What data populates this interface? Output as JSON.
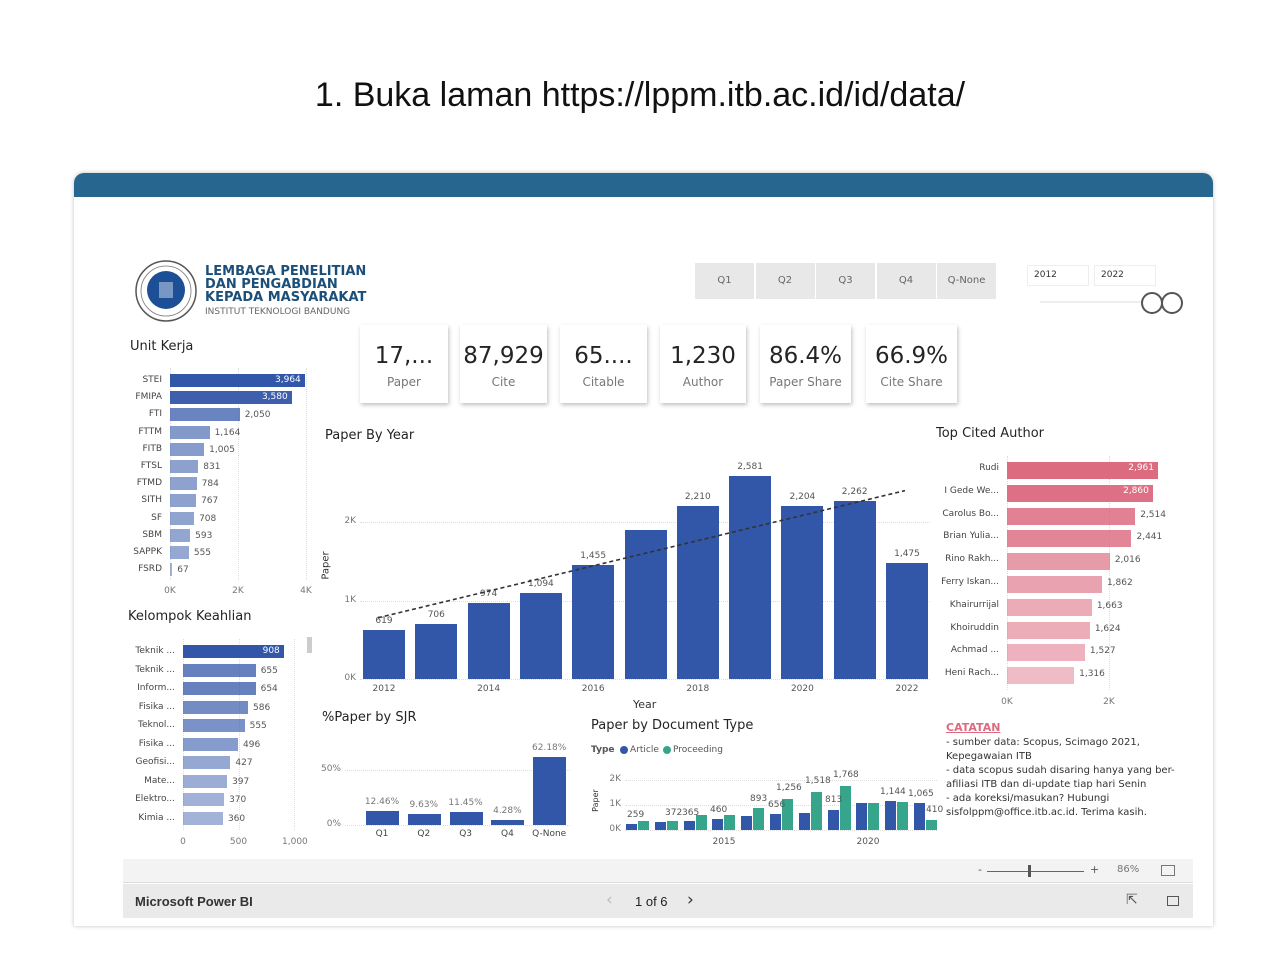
{
  "heading": "1. Buka laman https://lppm.itb.ac.id/id/data/",
  "logo": {
    "line1": "LEMBAGA PENELITIAN",
    "line2": "DAN PENGABDIAN",
    "line3": "KEPADA MASYARAKAT",
    "line4": "INSTITUT TEKNOLOGI BANDUNG",
    "seal_text": "INSTITUT TEKNOLOGI BANDUNG 1920"
  },
  "kpis": [
    {
      "value": "17,...",
      "label": "Paper"
    },
    {
      "value": "87,929",
      "label": "Cite"
    },
    {
      "value": "65....",
      "label": "Citable"
    },
    {
      "value": "1,230",
      "label": "Author"
    },
    {
      "value": "86.4%",
      "label": "Paper Share"
    },
    {
      "value": "66.9%",
      "label": "Cite Share"
    }
  ],
  "quartile_slicer": [
    "Q1",
    "Q2",
    "Q3",
    "Q4",
    "Q-None"
  ],
  "year_slicer": {
    "from": "2012",
    "to": "2022"
  },
  "notes": {
    "title": "CATATAN",
    "lines": [
      "- sumber data: Scopus, Scimago 2021,",
      "Kepegawaian ITB",
      "- data scopus sudah disaring hanya yang ber-",
      "afiliasi ITB dan di-update tiap hari Senin",
      "- ada koreksi/masukan? Hubungi",
      "sisfolppm@office.itb.ac.id. Terima kasih."
    ]
  },
  "zoom": {
    "minus": "-",
    "plus": "+",
    "level": "86%"
  },
  "footer": {
    "brand": "Microsoft Power BI",
    "page": "1 of 6"
  },
  "colors": {
    "header": "#27668e",
    "bar_blue": "#3256a8",
    "pink": "#dc6b80",
    "teal": "#37a58c",
    "notes": "#dc6b80"
  },
  "chart_data": [
    {
      "id": "unit",
      "type": "bar",
      "orientation": "horizontal",
      "title": "Unit Kerja",
      "categories": [
        "STEI",
        "FMIPA",
        "FTI",
        "FTTM",
        "FITB",
        "FTSL",
        "FTMD",
        "SITH",
        "SF",
        "SBM",
        "SAPPK",
        "FSRD"
      ],
      "values": [
        3964,
        3580,
        2050,
        1164,
        1005,
        831,
        784,
        767,
        708,
        593,
        555,
        67
      ],
      "labels": [
        "3,964",
        "3,580",
        "2,050",
        "1,164",
        "1,005",
        "831",
        "784",
        "767",
        "708",
        "593",
        "555",
        "67"
      ],
      "ticks": [
        "0K",
        "2K",
        "4K"
      ],
      "xlim": [
        0,
        4000
      ]
    },
    {
      "id": "kk",
      "type": "bar",
      "orientation": "horizontal",
      "title": "Kelompok Keahlian",
      "categories": [
        "Teknik ...",
        "Teknik ...",
        "Inform...",
        "Fisika ...",
        "Teknol...",
        "Fisika ...",
        "Geofisi...",
        "Mate...",
        "Elektro...",
        "Kimia ..."
      ],
      "values": [
        908,
        655,
        654,
        586,
        555,
        496,
        427,
        397,
        370,
        360
      ],
      "labels": [
        "908",
        "655",
        "654",
        "586",
        "555",
        "496",
        "427",
        "397",
        "370",
        "360"
      ],
      "ticks": [
        "0",
        "500",
        "1,000"
      ],
      "xlim": [
        0,
        1000
      ]
    },
    {
      "id": "year",
      "type": "bar",
      "title": "Paper By Year",
      "xlabel": "Year",
      "ylabel": "Paper",
      "categories": [
        "2012",
        "2013",
        "2014",
        "2015",
        "2016",
        "2017",
        "2018",
        "2019",
        "2020",
        "2021",
        "2022"
      ],
      "values": [
        619,
        706,
        974,
        1094,
        1455,
        1900,
        2210,
        2581,
        2204,
        2262,
        1475
      ],
      "labels": [
        "619",
        "706",
        "974",
        "1,094",
        "1,455",
        "",
        "2,210",
        "2,581",
        "2,204",
        "2,262",
        "1,475"
      ],
      "xticks": [
        "2012",
        "2014",
        "2016",
        "2018",
        "2020",
        "2022"
      ],
      "yticks": [
        "0K",
        "1K",
        "2K"
      ],
      "ylim": [
        0,
        2800
      ],
      "trendline": {
        "style": "dashed",
        "from": 780,
        "to": 2400
      }
    },
    {
      "id": "author",
      "type": "bar",
      "orientation": "horizontal",
      "title": "Top Cited Author",
      "categories": [
        "Rudi",
        "I Gede We...",
        "Carolus Bo...",
        "Brian Yulia...",
        "Rino Rakh...",
        "Ferry Iskan...",
        "Khairurrijal",
        "Khoiruddin",
        "Achmad ...",
        "Heni Rach..."
      ],
      "values": [
        2961,
        2860,
        2514,
        2441,
        2016,
        1862,
        1663,
        1624,
        1527,
        1316
      ],
      "labels": [
        "2,961",
        "2,860",
        "2,514",
        "2,441",
        "2,016",
        "1,862",
        "1,663",
        "1,624",
        "1,527",
        "1,316"
      ],
      "ticks": [
        "0K",
        "2K"
      ],
      "xlim": [
        0,
        3000
      ]
    },
    {
      "id": "sjr",
      "type": "bar",
      "title": "%Paper by SJR",
      "categories": [
        "Q1",
        "Q2",
        "Q3",
        "Q4",
        "Q-None"
      ],
      "values": [
        12.46,
        9.63,
        11.45,
        4.28,
        62.18
      ],
      "labels": [
        "12.46%",
        "9.63%",
        "11.45%",
        "4.28%",
        "62.18%"
      ],
      "yticks": [
        "0%",
        "50%"
      ],
      "ylim": [
        0,
        70
      ]
    },
    {
      "id": "doctype",
      "type": "bar",
      "title": "Paper by Document Type",
      "ylabel": "Paper",
      "legend_title": "Type",
      "legend": "top-left",
      "categories": [
        "2012",
        "2013",
        "2014",
        "2015",
        "2016",
        "2017",
        "2018",
        "2019",
        "2020",
        "2021",
        "2022"
      ],
      "xticks": [
        "2015",
        "2020"
      ],
      "yticks": [
        "0K",
        "1K",
        "2K"
      ],
      "ylim": [
        0,
        2200
      ],
      "series": [
        {
          "name": "Article",
          "values": [
            259,
            330,
            365,
            460,
            560,
            656,
            700,
            813,
            1100,
            1144,
            1065
          ]
        },
        {
          "name": "Proceeding",
          "values": [
            372,
            380,
            600,
            620,
            893,
            1256,
            1518,
            1768,
            1100,
            1110,
            410
          ]
        }
      ],
      "labels": [
        "259",
        "372",
        "365",
        "460",
        "893",
        "656",
        "1,256",
        "1,518",
        "813",
        "1,768",
        "1,144",
        "1,065",
        "410"
      ]
    }
  ]
}
